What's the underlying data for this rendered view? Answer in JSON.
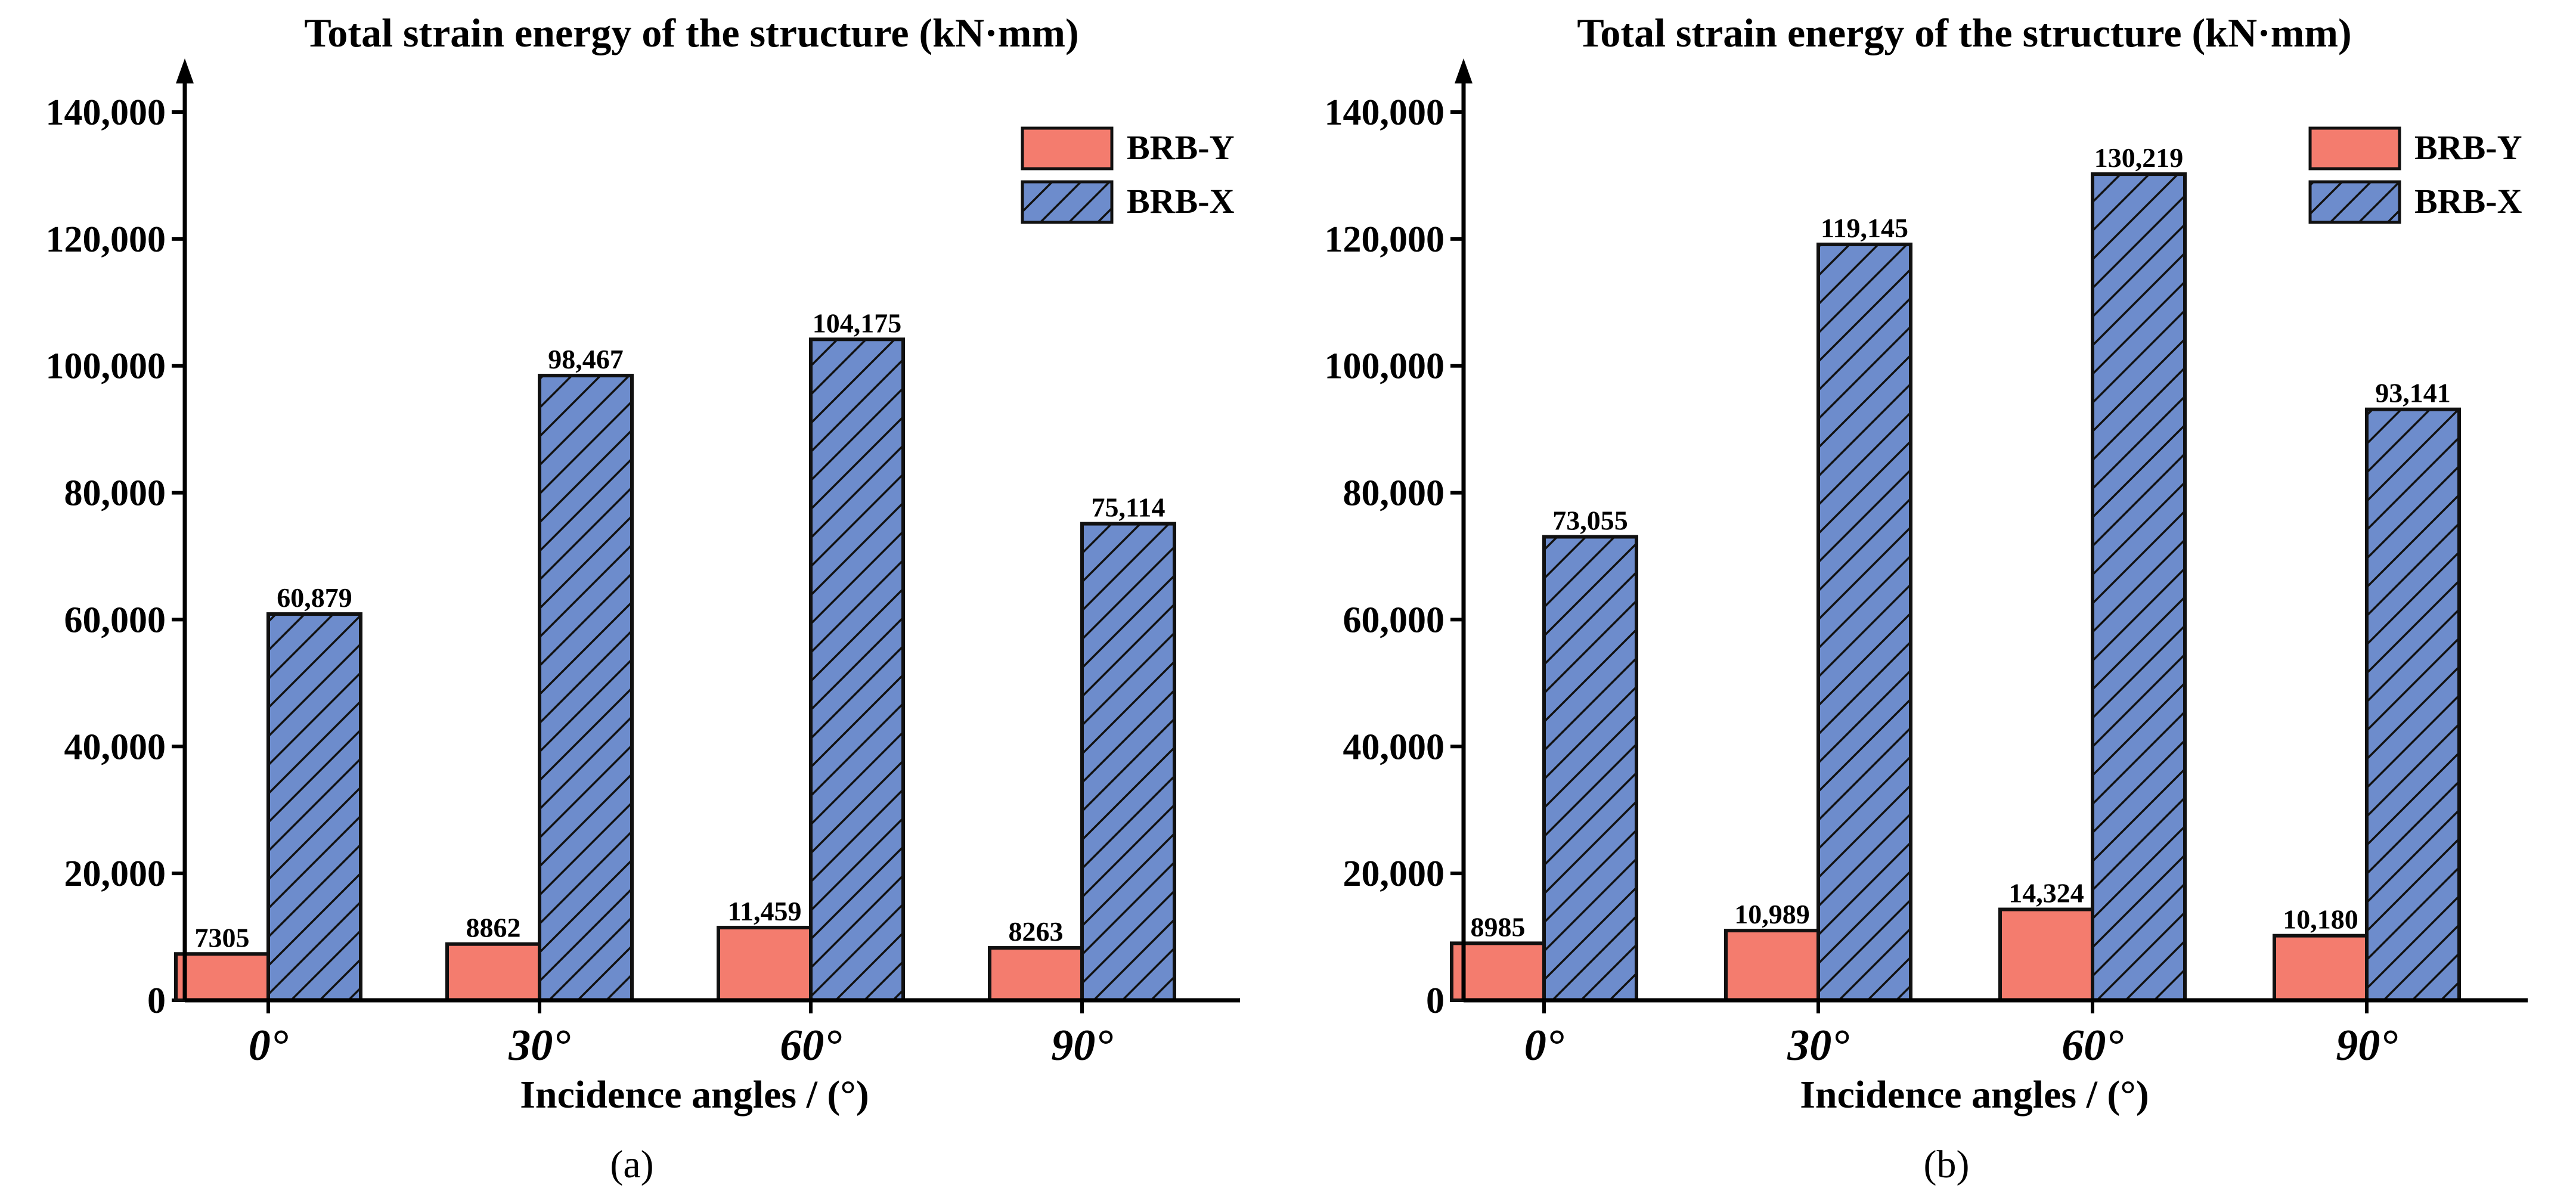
{
  "chart_data": [
    {
      "type": "bar",
      "panel": "(a)",
      "title": "Total strain energy of the structure (kN·mm)",
      "xlabel": "Incidence angles / (°)",
      "ylabel": "",
      "ylim": [
        0,
        140000
      ],
      "yticks": [
        0,
        20000,
        40000,
        60000,
        80000,
        100000,
        120000,
        140000
      ],
      "ytick_labels": [
        "0",
        "20,000",
        "40,000",
        "60,000",
        "80,000",
        "100,000",
        "120,000",
        "140,000"
      ],
      "categories": [
        "0°",
        "30°",
        "60°",
        "90°"
      ],
      "legend_position": "top-right",
      "series": [
        {
          "name": "BRB-Y",
          "color": "#f47c6e",
          "pattern": "solid",
          "values": [
            7305,
            8862,
            11459,
            8263
          ],
          "labels": [
            "7305",
            "8862",
            "11,459",
            "8263"
          ]
        },
        {
          "name": "BRB-X",
          "color": "#6d8ccc",
          "pattern": "diagonal-hatch",
          "values": [
            60879,
            98467,
            104175,
            75114
          ],
          "labels": [
            "60,879",
            "98,467",
            "104,175",
            "75,114"
          ]
        }
      ]
    },
    {
      "type": "bar",
      "panel": "(b)",
      "title": "Total strain energy of the structure (kN·mm)",
      "xlabel": "Incidence angles / (°)",
      "ylabel": "",
      "ylim": [
        0,
        140000
      ],
      "yticks": [
        0,
        20000,
        40000,
        60000,
        80000,
        100000,
        120000,
        140000
      ],
      "ytick_labels": [
        "0",
        "20,000",
        "40,000",
        "60,000",
        "80,000",
        "100,000",
        "120,000",
        "140,000"
      ],
      "categories": [
        "0°",
        "30°",
        "60°",
        "90°"
      ],
      "legend_position": "top-right",
      "series": [
        {
          "name": "BRB-Y",
          "color": "#f47c6e",
          "pattern": "solid",
          "values": [
            8985,
            10989,
            14324,
            10180
          ],
          "labels": [
            "8985",
            "10,989",
            "14,324",
            "10,180"
          ]
        },
        {
          "name": "BRB-X",
          "color": "#6d8ccc",
          "pattern": "diagonal-hatch",
          "values": [
            73055,
            119145,
            130219,
            93141
          ],
          "labels": [
            "73,055",
            "119,145",
            "130,219",
            "93,141"
          ]
        }
      ]
    }
  ]
}
